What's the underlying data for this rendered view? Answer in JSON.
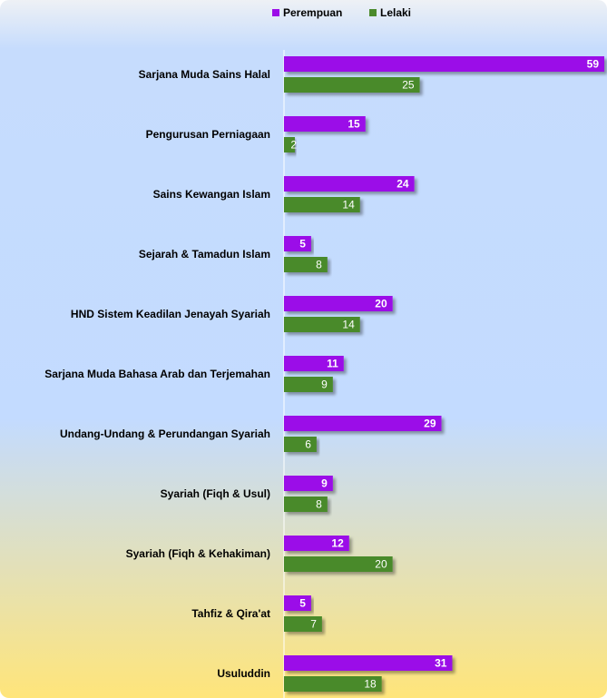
{
  "chart_data": {
    "type": "bar",
    "orientation": "horizontal",
    "categories": [
      "Sarjana Muda Sains Halal",
      "Pengurusan Perniagaan",
      "Sains Kewangan Islam",
      "Sejarah & Tamadun Islam",
      "HND Sistem Keadilan Jenayah Syariah",
      "Sarjana Muda Bahasa Arab dan Terjemahan",
      "Undang-Undang & Perundangan Syariah",
      "Syariah (Fiqh & Usul)",
      "Syariah (Fiqh & Kehakiman)",
      "Tahfiz & Qira'at",
      "Usuluddin"
    ],
    "series": [
      {
        "name": "Perempuan",
        "color": "#9b0de8",
        "values": [
          59,
          15,
          24,
          5,
          20,
          11,
          29,
          9,
          12,
          5,
          31
        ]
      },
      {
        "name": "Lelaki",
        "color": "#4a8a2c",
        "values": [
          25,
          2,
          14,
          8,
          14,
          9,
          6,
          8,
          20,
          7,
          18
        ]
      }
    ],
    "legend": "top"
  }
}
